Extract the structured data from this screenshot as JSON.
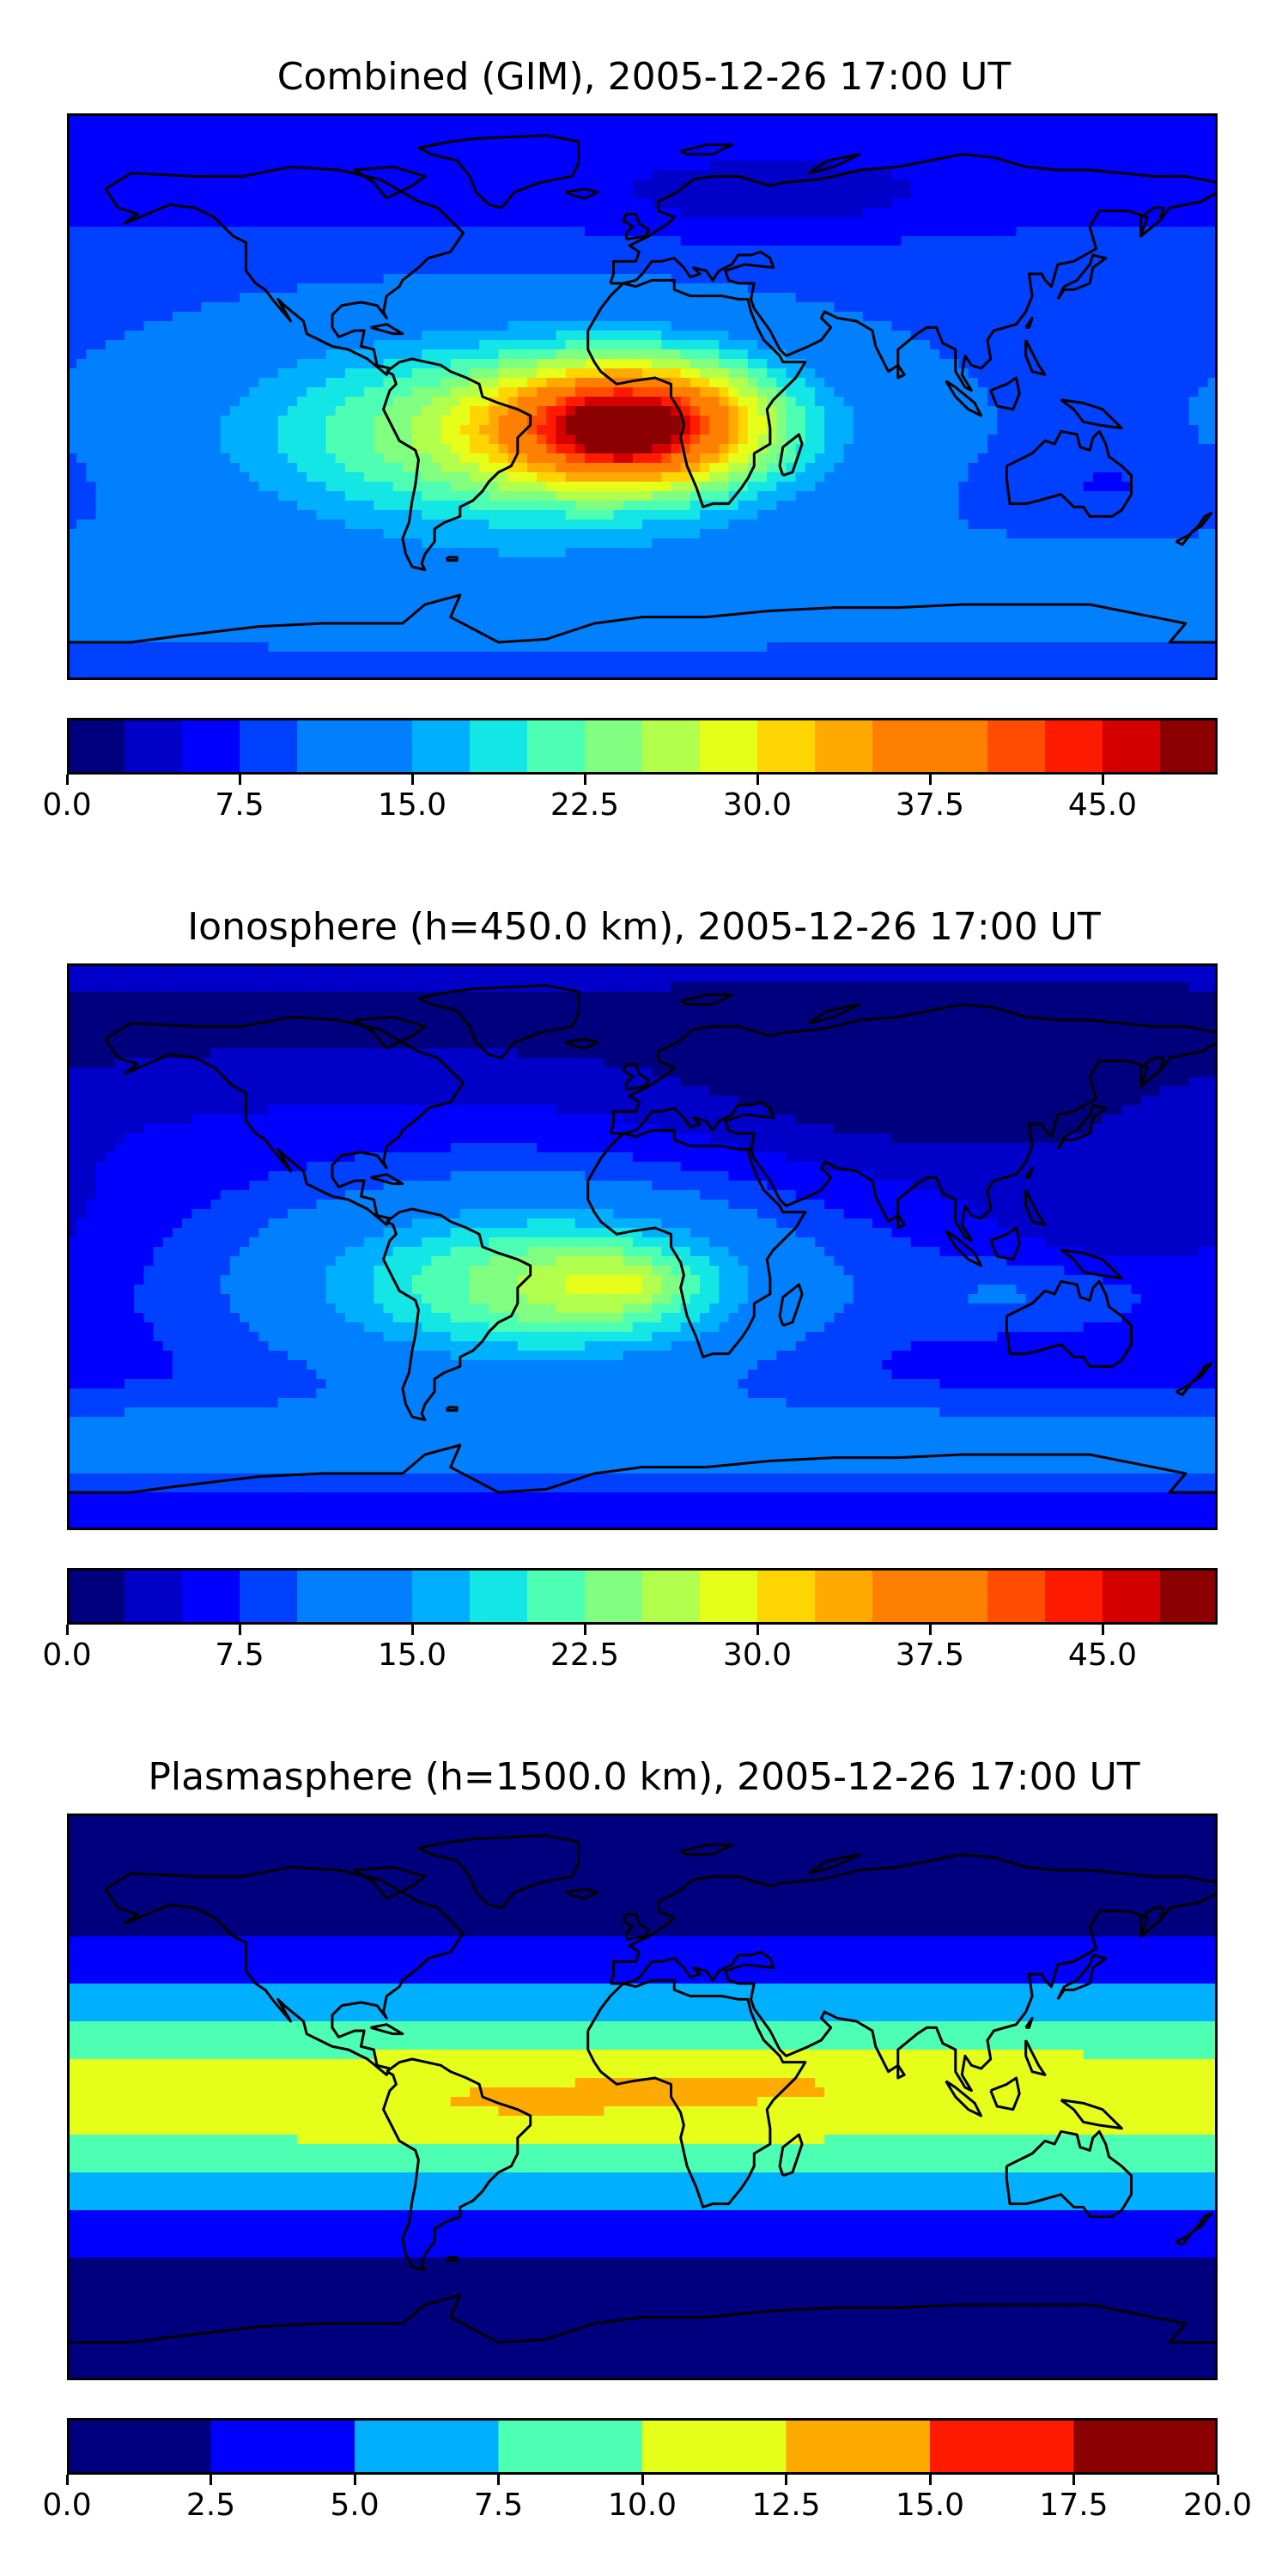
{
  "chart_data": [
    {
      "type": "heatmap",
      "title": "Combined (GIM), 2005-12-26 17:00 UT",
      "xlabel": "",
      "ylabel": "",
      "xlim": [
        -180,
        180
      ],
      "ylim": [
        -90,
        90
      ],
      "grid": false,
      "colorbar": {
        "orientation": "horizontal",
        "placement": "below",
        "levels": [
          0,
          2.5,
          5,
          7.5,
          10,
          12.5,
          15,
          17.5,
          20,
          22.5,
          25,
          27.5,
          30,
          32.5,
          35,
          37.5,
          40,
          42.5,
          45,
          47.5,
          50
        ],
        "ticks": [
          0.0,
          7.5,
          15.0,
          22.5,
          30.0,
          37.5,
          45.0
        ],
        "tick_labels": [
          "0.0",
          "7.5",
          "15.0",
          "22.5",
          "30.0",
          "37.5",
          "45.0"
        ]
      },
      "background_value": 9,
      "features": [
        {
          "type": "blob",
          "lon": -40,
          "lat": -12,
          "rx": 90,
          "ry": 32,
          "value": 17
        },
        {
          "type": "blob",
          "lon": 2,
          "lat": -8,
          "rx": 40,
          "ry": 20,
          "value": 22
        },
        {
          "type": "blob",
          "lon": -15,
          "lat": -10,
          "rx": 35,
          "ry": 16,
          "value": 7
        },
        {
          "type": "blob",
          "lon": -5,
          "lat": -12,
          "rx": 18,
          "ry": 10,
          "value": 4
        },
        {
          "type": "blob",
          "lon": -7,
          "lat": -13,
          "rx": 6,
          "ry": 4,
          "value": 2
        },
        {
          "type": "band",
          "lat": 72,
          "width": 22,
          "value": -3
        },
        {
          "type": "band",
          "lat": -62,
          "width": 16,
          "value": 3
        },
        {
          "type": "blob",
          "lon": 40,
          "lat": 62,
          "rx": 50,
          "ry": 12,
          "value": -3
        },
        {
          "type": "blob",
          "lon": 150,
          "lat": -28,
          "rx": 35,
          "ry": 12,
          "value": -2
        }
      ]
    },
    {
      "type": "heatmap",
      "title": "Ionosphere  (h=450.0 km), 2005-12-26 17:00 UT",
      "xlabel": "",
      "ylabel": "",
      "xlim": [
        -180,
        180
      ],
      "ylim": [
        -90,
        90
      ],
      "grid": false,
      "colorbar": {
        "orientation": "horizontal",
        "placement": "below",
        "levels": [
          0,
          2.5,
          5,
          7.5,
          10,
          12.5,
          15,
          17.5,
          20,
          22.5,
          25,
          27.5,
          30,
          32.5,
          35,
          37.5,
          40,
          42.5,
          45,
          47.5,
          50
        ],
        "ticks": [
          0.0,
          7.5,
          15.0,
          22.5,
          30.0,
          37.5,
          45.0
        ],
        "tick_labels": [
          "0.0",
          "7.5",
          "15.0",
          "22.5",
          "30.0",
          "37.5",
          "45.0"
        ]
      },
      "background_value": 6,
      "features": [
        {
          "type": "blob",
          "lon": -35,
          "lat": -12,
          "rx": 80,
          "ry": 30,
          "value": 17
        },
        {
          "type": "blob",
          "lon": -10,
          "lat": -12,
          "rx": 30,
          "ry": 14,
          "value": 6
        },
        {
          "type": "blob",
          "lon": -2,
          "lat": -12,
          "rx": 10,
          "ry": 6,
          "value": 3
        },
        {
          "type": "band",
          "lat": 72,
          "width": 25,
          "value": -4
        },
        {
          "type": "blob",
          "lon": 90,
          "lat": 45,
          "rx": 80,
          "ry": 25,
          "value": -4
        },
        {
          "type": "blob",
          "lon": 150,
          "lat": 10,
          "rx": 40,
          "ry": 20,
          "value": -3
        },
        {
          "type": "band",
          "lat": -62,
          "width": 14,
          "value": 6
        },
        {
          "type": "blob",
          "lon": 120,
          "lat": -15,
          "rx": 40,
          "ry": 12,
          "value": 4
        }
      ]
    },
    {
      "type": "heatmap",
      "title": "Plasmasphere (h=1500.0 km), 2005-12-26 17:00 UT",
      "xlabel": "",
      "ylabel": "",
      "xlim": [
        -180,
        180
      ],
      "ylim": [
        -90,
        90
      ],
      "grid": false,
      "colorbar": {
        "orientation": "horizontal",
        "placement": "below",
        "levels": [
          0,
          2.5,
          5,
          7.5,
          10,
          12.5,
          15,
          17.5,
          20
        ],
        "ticks": [
          0.0,
          2.5,
          5.0,
          7.5,
          10.0,
          12.5,
          15.0,
          17.5,
          20.0
        ],
        "tick_labels": [
          "0.0",
          "2.5",
          "5.0",
          "7.5",
          "10.0",
          "12.5",
          "15.0",
          "17.5",
          "20.0"
        ]
      },
      "background_value": 1,
      "features": [
        {
          "type": "band",
          "lat": 0,
          "width": 38,
          "value": 10
        },
        {
          "type": "blob",
          "lon": -40,
          "lat": -2,
          "rx": 60,
          "ry": 12,
          "value": 1.6
        },
        {
          "type": "blob",
          "lon": 40,
          "lat": 5,
          "rx": 60,
          "ry": 12,
          "value": 1.6
        },
        {
          "type": "blob",
          "lon": 110,
          "lat": 5,
          "rx": 30,
          "ry": 8,
          "value": 1
        }
      ]
    }
  ],
  "colormap": [
    "#00007f",
    "#0000c8",
    "#0000ff",
    "#0040ff",
    "#0080ff",
    "#00b0ff",
    "#14e6e6",
    "#4dffb3",
    "#80ff80",
    "#b3ff4d",
    "#e6ff1a",
    "#ffd500",
    "#ffaa00",
    "#ff7f00",
    "#ff4d00",
    "#ff1a00",
    "#d40000",
    "#8b0000"
  ],
  "colors": {
    "coastline": "#000000",
    "background": "#ffffff"
  }
}
